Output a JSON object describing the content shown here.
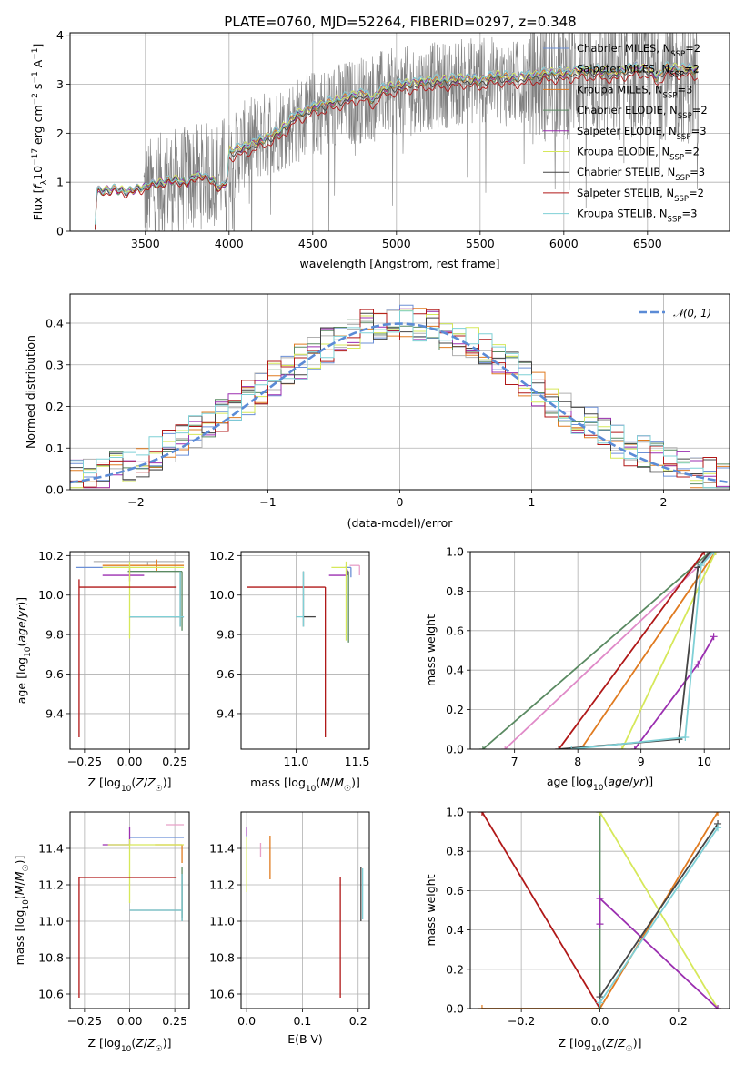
{
  "figure": {
    "title": "PLATE=0760, MJD=52264, FIBERID=0297, z=0.348"
  },
  "models": [
    {
      "name": "Chabrier MILES",
      "nssp": "2",
      "color": "#6b8fd6"
    },
    {
      "name": "Salpeter MILES",
      "nssp": "2",
      "color": "#b0b0b0"
    },
    {
      "name": "Kroupa MILES",
      "nssp": "3",
      "color": "#e07b20"
    },
    {
      "name": "Chabrier ELODIE",
      "nssp": "2",
      "color": "#5a8a62"
    },
    {
      "name": "Salpeter ELODIE",
      "nssp": "3",
      "color": "#9b2fb0"
    },
    {
      "name": "Kroupa ELODIE",
      "nssp": "2",
      "color": "#d6e85a"
    },
    {
      "name": "Chabrier STELIB",
      "nssp": "3",
      "color": "#444444"
    },
    {
      "name": "Salpeter STELIB",
      "nssp": "2",
      "color": "#b01818"
    },
    {
      "name": "Kroupa STELIB",
      "nssp": "3",
      "color": "#7fd0d6"
    }
  ],
  "chart_data": [
    {
      "id": "spectrum",
      "type": "line",
      "xlabel": "wavelength [Angstrom, rest frame]",
      "ylabel": "Flux [f_λ 10^-17 erg cm^-2 s^-1 A^-1]",
      "xlim": [
        3050,
        6990
      ],
      "ylim": [
        0,
        4.05
      ],
      "xticks": [
        3500,
        4000,
        4500,
        5000,
        5500,
        6000,
        6500
      ],
      "yticks": [
        0,
        1,
        2,
        3,
        4
      ],
      "data_color": "#808080",
      "observed_x": [
        3500,
        3650,
        3800,
        3950,
        4100,
        4300,
        4500,
        4700,
        4900,
        5100,
        5300,
        5500,
        5700,
        5900,
        6100,
        6300,
        6500,
        6700,
        6800
      ],
      "observed_y": [
        0.8,
        1.0,
        1.1,
        1.2,
        1.8,
        2.1,
        2.4,
        2.6,
        2.8,
        2.9,
        3.0,
        3.1,
        3.0,
        3.1,
        3.2,
        3.1,
        3.2,
        3.1,
        3.0
      ],
      "model_x": [
        3200,
        3210,
        3300,
        3400,
        3500,
        3600,
        3700,
        3750,
        3800,
        3900,
        3950,
        3990,
        4000,
        4100,
        4200,
        4300,
        4400,
        4500,
        4600,
        4700,
        4800,
        4862,
        4900,
        5000,
        5100,
        5200,
        5300,
        5400,
        5500,
        5600,
        5700,
        5800,
        5900,
        6000,
        6100,
        6200,
        6300,
        6400,
        6500,
        6563,
        6600,
        6700,
        6800
      ],
      "model_y": [
        0.1,
        0.8,
        0.85,
        0.8,
        0.9,
        1.0,
        1.05,
        0.95,
        1.15,
        1.05,
        0.85,
        1.05,
        1.6,
        1.7,
        1.85,
        2.0,
        2.35,
        2.5,
        2.6,
        2.7,
        2.8,
        2.65,
        2.85,
        2.95,
        3.0,
        3.05,
        3.05,
        3.1,
        3.05,
        3.15,
        3.1,
        3.15,
        3.2,
        3.2,
        3.25,
        3.25,
        3.2,
        3.3,
        3.3,
        3.1,
        3.3,
        3.3,
        3.25
      ],
      "model_offsets": [
        0.06,
        0.09,
        0.02,
        0.0,
        0.03,
        0.05,
        -0.02,
        -0.12,
        0.07
      ]
    },
    {
      "id": "residuals",
      "type": "line",
      "xlabel": "(data-model)/error",
      "ylabel": "Normed distribution",
      "xlim": [
        -2.5,
        2.5
      ],
      "ylim": [
        0,
        0.47
      ],
      "xticks": [
        -2,
        -1,
        0,
        1,
        2
      ],
      "yticks": [
        0.0,
        0.1,
        0.2,
        0.3,
        0.4
      ],
      "reference": {
        "name": "𝒩(0, 1)",
        "mean": 0,
        "sigma": 1,
        "color": "#5b8bd6"
      },
      "bin_width": 0.1
    },
    {
      "id": "age-vs-z",
      "type": "scatter",
      "xlabel": "Z [log10(Z/Z☉)]",
      "ylabel": "age [log10(age/yr)]",
      "xlim": [
        -0.33,
        0.33
      ],
      "ylim": [
        9.22,
        10.22
      ],
      "xticks": [
        -0.25,
        0.0,
        0.25
      ],
      "yticks": [
        9.4,
        9.6,
        9.8,
        10.0,
        10.2
      ],
      "points": [
        {
          "x": 0.0,
          "y": 10.14,
          "xerr": [
            0.3,
            0.0
          ],
          "yerr": [
            0.02,
            0.0
          ],
          "color": "#6b8fd6"
        },
        {
          "x": 0.1,
          "y": 10.17,
          "xerr": [
            0.3,
            0.2
          ],
          "yerr": [
            0.02,
            0.0
          ],
          "color": "#b0b0b0"
        },
        {
          "x": 0.15,
          "y": 10.15,
          "xerr": [
            0.3,
            0.15
          ],
          "yerr": [
            0.03,
            0.03
          ],
          "color": "#e07b20"
        },
        {
          "x": 0.29,
          "y": 10.12,
          "xerr": [
            0.3,
            0.0
          ],
          "yerr": [
            0.3,
            0.0
          ],
          "color": "#5a8a62"
        },
        {
          "x": 0.0,
          "y": 10.1,
          "xerr": [
            0.15,
            0.08
          ],
          "yerr": [
            0.03,
            0.03
          ],
          "color": "#9b2fb0"
        },
        {
          "x": 0.0,
          "y": 10.14,
          "xerr": [
            0.15,
            0.3
          ],
          "yerr": [
            0.36,
            0.03
          ],
          "color": "#d6e85a"
        },
        {
          "x": 0.28,
          "y": 9.89,
          "xerr": [
            0.28,
            0.02
          ],
          "yerr": [
            0.05,
            0.23
          ],
          "color": "#444444"
        },
        {
          "x": -0.28,
          "y": 10.04,
          "xerr": [
            0.0,
            0.54
          ],
          "yerr": [
            0.76,
            0.04
          ],
          "color": "#b01818"
        },
        {
          "x": 0.28,
          "y": 9.89,
          "xerr": [
            0.28,
            0.02
          ],
          "yerr": [
            0.05,
            0.23
          ],
          "color": "#7fd0d6"
        }
      ]
    },
    {
      "id": "age-vs-mass",
      "type": "scatter",
      "xlabel": "mass [log10(M/M☉)]",
      "ylabel": "",
      "xlim": [
        10.55,
        11.6
      ],
      "ylim": [
        9.22,
        10.22
      ],
      "xticks": [
        11.0,
        11.5
      ],
      "yticks": [
        9.4,
        9.6,
        9.8,
        10.0,
        10.2
      ],
      "points": [
        {
          "x": 11.45,
          "y": 10.14,
          "xerr": [
            0.05,
            0.0
          ],
          "yerr": [
            0.05,
            0.0
          ],
          "color": "#6b8fd6"
        },
        {
          "x": 11.52,
          "y": 10.15,
          "xerr": [
            0.08,
            0.0
          ],
          "yerr": [
            0.05,
            0.0
          ],
          "color": "#e8a0c8"
        },
        {
          "x": 11.48,
          "y": 10.15,
          "xerr": [
            0.0,
            0.0
          ],
          "yerr": [
            0.0,
            0.0
          ],
          "color": "#e07b20"
        },
        {
          "x": 11.43,
          "y": 10.12,
          "xerr": [
            0.02,
            0.0
          ],
          "yerr": [
            0.36,
            0.0
          ],
          "color": "#5a8a62"
        },
        {
          "x": 11.42,
          "y": 10.1,
          "xerr": [
            0.15,
            0.0
          ],
          "yerr": [
            0.0,
            0.03
          ],
          "color": "#9b2fb0"
        },
        {
          "x": 11.41,
          "y": 10.14,
          "xerr": [
            0.12,
            0.0
          ],
          "yerr": [
            0.37,
            0.03
          ],
          "color": "#d6e85a"
        },
        {
          "x": 11.06,
          "y": 9.89,
          "xerr": [
            0.0,
            0.1
          ],
          "yerr": [
            0.05,
            0.23
          ],
          "color": "#444444"
        },
        {
          "x": 11.24,
          "y": 10.04,
          "xerr": [
            0.64,
            0.0
          ],
          "yerr": [
            0.76,
            0.0
          ],
          "color": "#b01818"
        },
        {
          "x": 11.06,
          "y": 9.89,
          "xerr": [
            0.06,
            0.0
          ],
          "yerr": [
            0.05,
            0.23
          ],
          "color": "#7fd0d6"
        }
      ]
    },
    {
      "id": "weight-vs-age",
      "type": "line",
      "xlabel": "age [log10(age/yr)]",
      "ylabel": "mass weight",
      "xlim": [
        6.3,
        10.4
      ],
      "ylim": [
        0.0,
        1.0
      ],
      "xticks": [
        7,
        8,
        9,
        10
      ],
      "yticks": [
        0.0,
        0.2,
        0.4,
        0.6,
        0.8,
        1.0
      ],
      "series": [
        {
          "color": "#5a8a62",
          "x": [
            6.5,
            10.1
          ],
          "y": [
            0.0,
            1.0
          ]
        },
        {
          "color": "#e08ac8",
          "x": [
            6.85,
            10.15
          ],
          "y": [
            0.0,
            1.0
          ]
        },
        {
          "color": "#b01818",
          "x": [
            7.7,
            10.0
          ],
          "y": [
            0.0,
            1.0
          ]
        },
        {
          "color": "#e07b20",
          "x": [
            8.05,
            10.18
          ],
          "y": [
            0.0,
            1.0
          ]
        },
        {
          "color": "#d6e85a",
          "x": [
            8.7,
            10.18
          ],
          "y": [
            0.0,
            1.0
          ]
        },
        {
          "color": "#9b2fb0",
          "x": [
            8.9,
            9.9,
            10.15
          ],
          "y": [
            0.0,
            0.43,
            0.57
          ]
        },
        {
          "color": "#444444",
          "x": [
            7.7,
            9.6,
            9.9,
            10.1
          ],
          "y": [
            0.0,
            0.05,
            0.92,
            1.0
          ]
        },
        {
          "color": "#7fd0d6",
          "x": [
            7.9,
            9.7,
            9.95,
            10.15
          ],
          "y": [
            0.0,
            0.06,
            0.93,
            1.0
          ]
        }
      ]
    },
    {
      "id": "mass-vs-z",
      "type": "scatter",
      "xlabel": "Z [log10(Z/Z☉)]",
      "ylabel": "mass [log10(M/M☉)]",
      "xlim": [
        -0.33,
        0.33
      ],
      "ylim": [
        10.52,
        11.6
      ],
      "xticks": [
        -0.25,
        0.0,
        0.25
      ],
      "yticks": [
        10.6,
        10.8,
        11.0,
        11.2,
        11.4
      ],
      "points": [
        {
          "x": 0.15,
          "y": 11.46,
          "xerr": [
            0.15,
            0.15
          ],
          "yerr": [
            0.0,
            0.0
          ],
          "color": "#6b8fd6"
        },
        {
          "x": 0.3,
          "y": 11.53,
          "xerr": [
            0.1,
            0.0
          ],
          "yerr": [
            0.0,
            0.0
          ],
          "color": "#e8a0c8"
        },
        {
          "x": 0.29,
          "y": 11.42,
          "xerr": [
            0.15,
            0.0
          ],
          "yerr": [
            0.1,
            0.0
          ],
          "color": "#e07b20"
        },
        {
          "x": 0.29,
          "y": 11.22,
          "xerr": [
            0.0,
            0.0
          ],
          "yerr": [
            0.2,
            0.08
          ],
          "color": "#5a8a62"
        },
        {
          "x": 0.0,
          "y": 11.42,
          "xerr": [
            0.15,
            0.0
          ],
          "yerr": [
            0.0,
            0.1
          ],
          "color": "#9b2fb0"
        },
        {
          "x": 0.0,
          "y": 11.42,
          "xerr": [
            0.12,
            0.3
          ],
          "yerr": [
            0.32,
            0.03
          ],
          "color": "#d6e85a"
        },
        {
          "x": 0.29,
          "y": 11.06,
          "xerr": [
            0.29,
            0.0
          ],
          "yerr": [
            0.06,
            0.2
          ],
          "color": "#444444"
        },
        {
          "x": -0.28,
          "y": 11.24,
          "xerr": [
            0.0,
            0.54
          ],
          "yerr": [
            0.66,
            0.0
          ],
          "color": "#b01818"
        },
        {
          "x": 0.29,
          "y": 11.06,
          "xerr": [
            0.29,
            0.0
          ],
          "yerr": [
            0.06,
            0.2
          ],
          "color": "#7fd0d6"
        }
      ]
    },
    {
      "id": "mass-vs-ebv",
      "type": "scatter",
      "xlabel": "E(B-V)",
      "ylabel": "",
      "xlim": [
        -0.01,
        0.22
      ],
      "ylim": [
        10.52,
        11.6
      ],
      "xticks": [
        0.0,
        0.1,
        0.2
      ],
      "yticks": [
        10.6,
        10.8,
        11.0,
        11.2,
        11.4
      ],
      "points": [
        {
          "x": 0.0,
          "y": 11.45,
          "yerr": [
            0.0,
            0.06
          ],
          "color": "#6b8fd6"
        },
        {
          "x": 0.0,
          "y": 11.46,
          "yerr": [
            0.3,
            0.0
          ],
          "color": "#d6e85a"
        },
        {
          "x": 0.0,
          "y": 11.47,
          "yerr": [
            0.0,
            0.05
          ],
          "color": "#9b2fb0"
        },
        {
          "x": 0.025,
          "y": 11.43,
          "yerr": [
            0.08,
            0.0
          ],
          "color": "#e8a0c8"
        },
        {
          "x": 0.042,
          "y": 11.35,
          "yerr": [
            0.12,
            0.12
          ],
          "color": "#e07b20"
        },
        {
          "x": 0.168,
          "y": 11.24,
          "yerr": [
            0.66,
            0.0
          ],
          "color": "#b01818"
        },
        {
          "x": 0.205,
          "y": 11.2,
          "yerr": [
            0.2,
            0.1
          ],
          "color": "#444444"
        },
        {
          "x": 0.208,
          "y": 11.15,
          "yerr": [
            0.14,
            0.14
          ],
          "color": "#7fd0d6"
        }
      ]
    },
    {
      "id": "weight-vs-z",
      "type": "line",
      "xlabel": "Z [log10(Z/Z☉)]",
      "ylabel": "mass weight",
      "xlim": [
        -0.33,
        0.33
      ],
      "ylim": [
        0.0,
        1.0
      ],
      "xticks": [
        -0.2,
        0.0,
        0.2
      ],
      "yticks": [
        0.0,
        0.2,
        0.4,
        0.6,
        0.8,
        1.0
      ],
      "series": [
        {
          "color": "#b01818",
          "x": [
            -0.3,
            0.0
          ],
          "y": [
            1.0,
            0.0
          ]
        },
        {
          "color": "#e07b20",
          "x": [
            -0.3,
            0.0,
            0.3
          ],
          "y": [
            0.0,
            0.0,
            1.0
          ]
        },
        {
          "color": "#5a8a62",
          "x": [
            0.0,
            0.0
          ],
          "y": [
            0.0,
            1.0
          ]
        },
        {
          "color": "#d6e85a",
          "x": [
            0.0,
            0.3
          ],
          "y": [
            1.0,
            0.0
          ]
        },
        {
          "color": "#9b2fb0",
          "x": [
            0.0,
            0.0,
            0.3
          ],
          "y": [
            0.43,
            0.56,
            0.0
          ]
        },
        {
          "color": "#444444",
          "x": [
            0.0,
            0.3
          ],
          "y": [
            0.06,
            0.94
          ]
        },
        {
          "color": "#7fd0d6",
          "x": [
            0.0,
            0.3
          ],
          "y": [
            0.03,
            0.92
          ]
        }
      ]
    }
  ]
}
